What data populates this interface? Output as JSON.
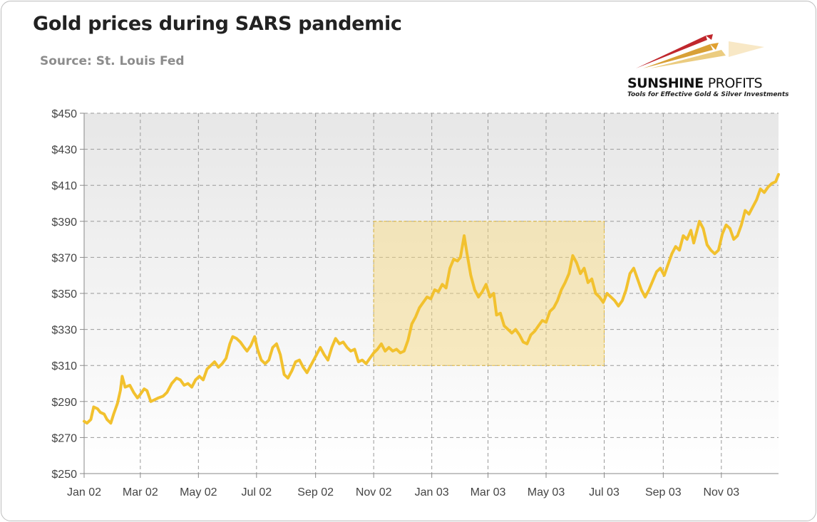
{
  "chart_data": {
    "type": "line",
    "title": "Gold prices during SARS pandemic",
    "subtitle": "Source: St. Louis Fed",
    "xlabel": "",
    "ylabel": "",
    "y_ticks": [
      "$250",
      "$270",
      "$290",
      "$310",
      "$330",
      "$350",
      "$370",
      "$390",
      "$410",
      "$430",
      "$450"
    ],
    "y_tick_values": [
      250,
      270,
      290,
      310,
      330,
      350,
      370,
      390,
      410,
      430,
      450
    ],
    "x_ticks": [
      "Jan 02",
      "Mar 02",
      "May 02",
      "Jul 02",
      "Sep 02",
      "Nov 02",
      "Jan 03",
      "Mar 03",
      "May 03",
      "Jul 03",
      "Sep 03",
      "Nov 03"
    ],
    "x_tick_dates": [
      "2002-01-01",
      "2002-03-01",
      "2002-05-01",
      "2002-07-01",
      "2002-09-01",
      "2002-11-01",
      "2003-01-01",
      "2003-03-01",
      "2003-05-01",
      "2003-07-01",
      "2003-09-01",
      "2003-11-01"
    ],
    "xlim": [
      "2002-01-01",
      "2003-12-31"
    ],
    "ylim": [
      250,
      450
    ],
    "grid": true,
    "line_color": "#f2c12e",
    "highlight": {
      "x_start": "2002-11-01",
      "x_end": "2003-07-01",
      "y_low": 310,
      "y_high": 390,
      "color": "#f6d87a"
    },
    "series": [
      {
        "values": [
          [
            "2002-01-01",
            279
          ],
          [
            "2002-01-04",
            278
          ],
          [
            "2002-01-08",
            280
          ],
          [
            "2002-01-11",
            287
          ],
          [
            "2002-01-15",
            286
          ],
          [
            "2002-01-18",
            284
          ],
          [
            "2002-01-22",
            283
          ],
          [
            "2002-01-25",
            280
          ],
          [
            "2002-01-29",
            278
          ],
          [
            "2002-02-01",
            283
          ],
          [
            "2002-02-05",
            289
          ],
          [
            "2002-02-08",
            296
          ],
          [
            "2002-02-10",
            304
          ],
          [
            "2002-02-13",
            298
          ],
          [
            "2002-02-18",
            299
          ],
          [
            "2002-02-22",
            295
          ],
          [
            "2002-02-26",
            292
          ],
          [
            "2002-03-01",
            294
          ],
          [
            "2002-03-05",
            297
          ],
          [
            "2002-03-08",
            296
          ],
          [
            "2002-03-12",
            290
          ],
          [
            "2002-03-16",
            291
          ],
          [
            "2002-03-20",
            292
          ],
          [
            "2002-03-25",
            293
          ],
          [
            "2002-03-29",
            295
          ],
          [
            "2002-04-03",
            300
          ],
          [
            "2002-04-08",
            303
          ],
          [
            "2002-04-12",
            302
          ],
          [
            "2002-04-16",
            299
          ],
          [
            "2002-04-20",
            300
          ],
          [
            "2002-04-24",
            298
          ],
          [
            "2002-04-28",
            302
          ],
          [
            "2002-05-02",
            304
          ],
          [
            "2002-05-06",
            302
          ],
          [
            "2002-05-10",
            308
          ],
          [
            "2002-05-14",
            310
          ],
          [
            "2002-05-18",
            312
          ],
          [
            "2002-05-22",
            309
          ],
          [
            "2002-05-26",
            311
          ],
          [
            "2002-05-30",
            314
          ],
          [
            "2002-06-03",
            322
          ],
          [
            "2002-06-06",
            326
          ],
          [
            "2002-06-10",
            325
          ],
          [
            "2002-06-14",
            323
          ],
          [
            "2002-06-18",
            320
          ],
          [
            "2002-06-21",
            318
          ],
          [
            "2002-06-25",
            321
          ],
          [
            "2002-06-29",
            326
          ],
          [
            "2002-07-02",
            319
          ],
          [
            "2002-07-06",
            313
          ],
          [
            "2002-07-10",
            311
          ],
          [
            "2002-07-14",
            313
          ],
          [
            "2002-07-18",
            320
          ],
          [
            "2002-07-22",
            322
          ],
          [
            "2002-07-26",
            316
          ],
          [
            "2002-07-30",
            305
          ],
          [
            "2002-08-03",
            303
          ],
          [
            "2002-08-07",
            307
          ],
          [
            "2002-08-11",
            312
          ],
          [
            "2002-08-15",
            313
          ],
          [
            "2002-08-19",
            309
          ],
          [
            "2002-08-23",
            306
          ],
          [
            "2002-08-28",
            311
          ],
          [
            "2002-09-02",
            316
          ],
          [
            "2002-09-06",
            320
          ],
          [
            "2002-09-10",
            316
          ],
          [
            "2002-09-14",
            313
          ],
          [
            "2002-09-18",
            320
          ],
          [
            "2002-09-22",
            325
          ],
          [
            "2002-09-26",
            322
          ],
          [
            "2002-09-30",
            323
          ],
          [
            "2002-10-04",
            320
          ],
          [
            "2002-10-08",
            318
          ],
          [
            "2002-10-12",
            319
          ],
          [
            "2002-10-16",
            312
          ],
          [
            "2002-10-20",
            313
          ],
          [
            "2002-10-24",
            311
          ],
          [
            "2002-10-28",
            314
          ],
          [
            "2002-11-01",
            317
          ],
          [
            "2002-11-05",
            319
          ],
          [
            "2002-11-09",
            322
          ],
          [
            "2002-11-13",
            318
          ],
          [
            "2002-11-17",
            320
          ],
          [
            "2002-11-21",
            318
          ],
          [
            "2002-11-25",
            319
          ],
          [
            "2002-11-29",
            317
          ],
          [
            "2002-12-03",
            318
          ],
          [
            "2002-12-07",
            324
          ],
          [
            "2002-12-11",
            333
          ],
          [
            "2002-12-15",
            337
          ],
          [
            "2002-12-19",
            342
          ],
          [
            "2002-12-23",
            345
          ],
          [
            "2002-12-27",
            348
          ],
          [
            "2002-12-31",
            347
          ],
          [
            "2003-01-04",
            352
          ],
          [
            "2003-01-08",
            351
          ],
          [
            "2003-01-12",
            355
          ],
          [
            "2003-01-16",
            353
          ],
          [
            "2003-01-20",
            364
          ],
          [
            "2003-01-24",
            369
          ],
          [
            "2003-01-28",
            368
          ],
          [
            "2003-01-31",
            370
          ],
          [
            "2003-02-04",
            382
          ],
          [
            "2003-02-07",
            372
          ],
          [
            "2003-02-11",
            360
          ],
          [
            "2003-02-15",
            352
          ],
          [
            "2003-02-19",
            348
          ],
          [
            "2003-02-23",
            351
          ],
          [
            "2003-02-27",
            355
          ],
          [
            "2003-03-03",
            348
          ],
          [
            "2003-03-07",
            350
          ],
          [
            "2003-03-10",
            338
          ],
          [
            "2003-03-14",
            339
          ],
          [
            "2003-03-18",
            332
          ],
          [
            "2003-03-22",
            330
          ],
          [
            "2003-03-26",
            328
          ],
          [
            "2003-03-30",
            330
          ],
          [
            "2003-04-03",
            327
          ],
          [
            "2003-04-07",
            323
          ],
          [
            "2003-04-11",
            322
          ],
          [
            "2003-04-15",
            327
          ],
          [
            "2003-04-19",
            329
          ],
          [
            "2003-04-23",
            332
          ],
          [
            "2003-04-27",
            335
          ],
          [
            "2003-05-01",
            334
          ],
          [
            "2003-05-05",
            340
          ],
          [
            "2003-05-09",
            342
          ],
          [
            "2003-05-13",
            346
          ],
          [
            "2003-05-17",
            352
          ],
          [
            "2003-05-21",
            356
          ],
          [
            "2003-05-25",
            361
          ],
          [
            "2003-05-29",
            371
          ],
          [
            "2003-06-02",
            367
          ],
          [
            "2003-06-06",
            361
          ],
          [
            "2003-06-10",
            364
          ],
          [
            "2003-06-14",
            356
          ],
          [
            "2003-06-18",
            358
          ],
          [
            "2003-06-22",
            350
          ],
          [
            "2003-06-26",
            348
          ],
          [
            "2003-06-30",
            345
          ],
          [
            "2003-07-04",
            350
          ],
          [
            "2003-07-08",
            348
          ],
          [
            "2003-07-12",
            346
          ],
          [
            "2003-07-16",
            343
          ],
          [
            "2003-07-20",
            346
          ],
          [
            "2003-07-24",
            352
          ],
          [
            "2003-07-28",
            361
          ],
          [
            "2003-08-01",
            364
          ],
          [
            "2003-08-05",
            358
          ],
          [
            "2003-08-09",
            352
          ],
          [
            "2003-08-13",
            348
          ],
          [
            "2003-08-17",
            352
          ],
          [
            "2003-08-21",
            357
          ],
          [
            "2003-08-25",
            362
          ],
          [
            "2003-08-29",
            364
          ],
          [
            "2003-09-02",
            360
          ],
          [
            "2003-09-06",
            366
          ],
          [
            "2003-09-10",
            372
          ],
          [
            "2003-09-14",
            376
          ],
          [
            "2003-09-18",
            374
          ],
          [
            "2003-09-22",
            382
          ],
          [
            "2003-09-26",
            380
          ],
          [
            "2003-09-30",
            385
          ],
          [
            "2003-10-03",
            378
          ],
          [
            "2003-10-06",
            384
          ],
          [
            "2003-10-09",
            390
          ],
          [
            "2003-10-13",
            386
          ],
          [
            "2003-10-17",
            377
          ],
          [
            "2003-10-21",
            374
          ],
          [
            "2003-10-25",
            372
          ],
          [
            "2003-10-29",
            374
          ],
          [
            "2003-11-02",
            383
          ],
          [
            "2003-11-06",
            388
          ],
          [
            "2003-11-10",
            386
          ],
          [
            "2003-11-14",
            380
          ],
          [
            "2003-11-18",
            382
          ],
          [
            "2003-11-22",
            388
          ],
          [
            "2003-11-26",
            396
          ],
          [
            "2003-11-30",
            394
          ],
          [
            "2003-12-04",
            398
          ],
          [
            "2003-12-08",
            402
          ],
          [
            "2003-12-12",
            408
          ],
          [
            "2003-12-16",
            406
          ],
          [
            "2003-12-20",
            409
          ],
          [
            "2003-12-24",
            411
          ],
          [
            "2003-12-28",
            412
          ],
          [
            "2003-12-31",
            416
          ]
        ]
      }
    ]
  },
  "logo": {
    "name_bold": "SUNSHINE",
    "name_light": "PROFITS",
    "tagline": "Tools for Effective Gold & Silver Investments"
  }
}
